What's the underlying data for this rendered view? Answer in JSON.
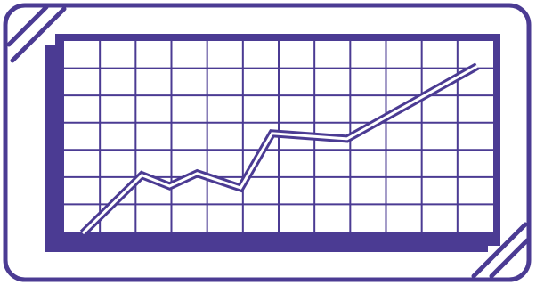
{
  "illustration": {
    "name": "line-chart-icon",
    "colors": {
      "primary": "#4b3b93",
      "background": "#ffffff"
    },
    "grid": {
      "columns": 12,
      "rows": 7
    },
    "trend_line": {
      "points": [
        [
          0.0,
          0.0
        ],
        [
          0.15,
          0.32
        ],
        [
          0.22,
          0.26
        ],
        [
          0.29,
          0.33
        ],
        [
          0.4,
          0.25
        ],
        [
          0.48,
          0.55
        ],
        [
          0.67,
          0.52
        ],
        [
          1.0,
          0.92
        ]
      ]
    }
  }
}
